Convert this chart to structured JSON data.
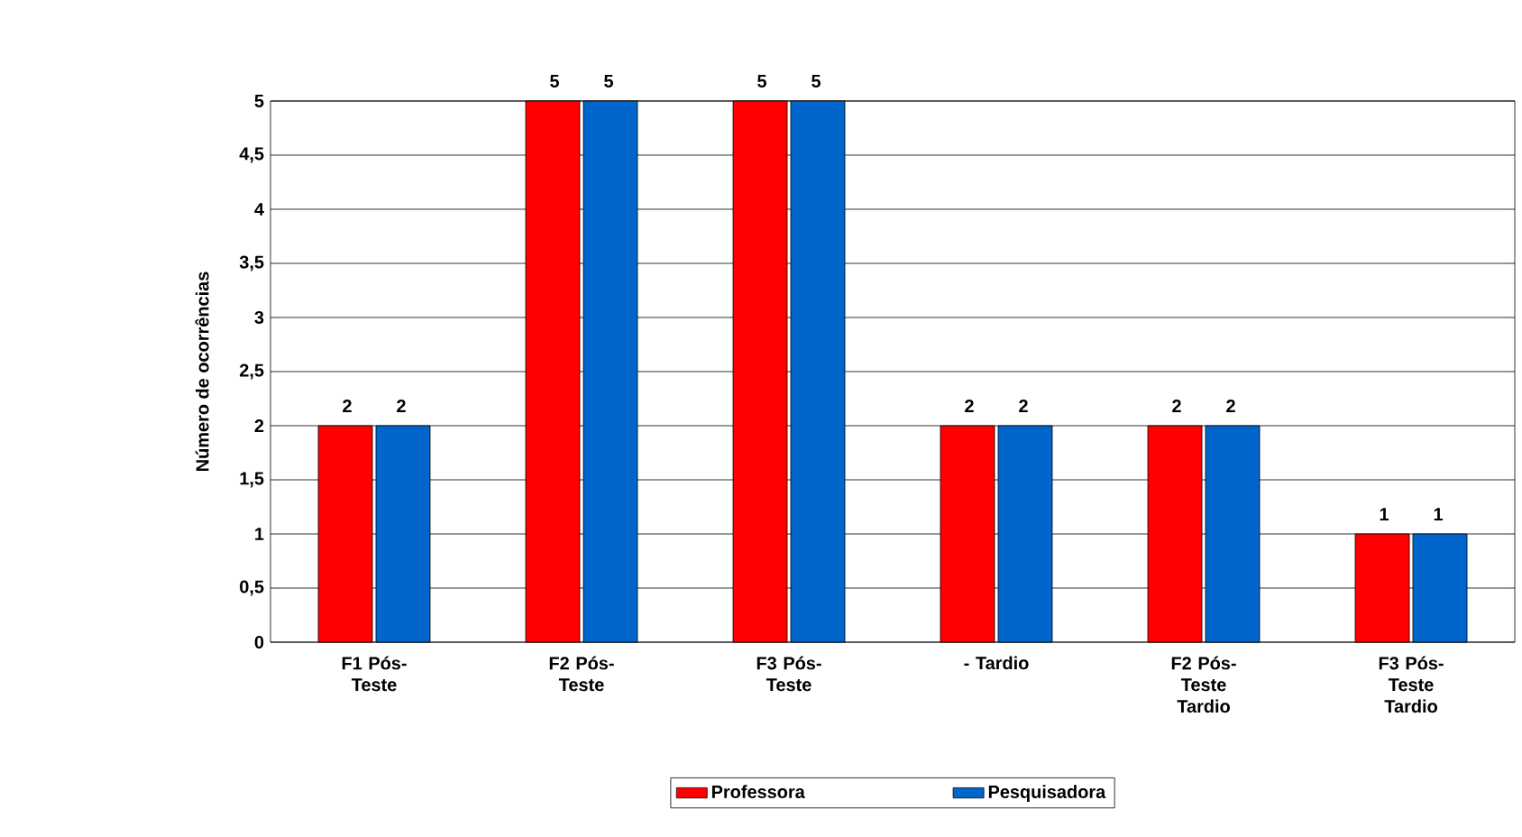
{
  "chart_data": {
    "type": "bar",
    "ylabel": "Número de ocorrências",
    "categories": [
      "F1 Pós-Teste",
      "F2 Pós-Teste",
      "F3 Pós-Teste",
      "- Tardio",
      "F2 Pós-Teste Tardio",
      "F3 Pós-Teste Tardio"
    ],
    "series": [
      {
        "name": "Professora",
        "color": "#ff0000",
        "values": [
          2,
          5,
          5,
          2,
          2,
          1
        ]
      },
      {
        "name": "Pesquisadora",
        "color": "#0066cc",
        "values": [
          2,
          5,
          5,
          2,
          2,
          1
        ]
      }
    ],
    "ylim": [
      0,
      5
    ],
    "yticks": [
      0,
      {
        "value": 0.5,
        "label": "0,5"
      },
      1,
      {
        "value": 1.5,
        "label": "1,5"
      },
      2,
      {
        "value": 2.5,
        "label": "2,5"
      },
      3,
      {
        "value": 3.5,
        "label": "3,5"
      },
      4,
      {
        "value": 4.5,
        "label": "4,5"
      },
      5
    ],
    "grid": "y",
    "legend": "bottom",
    "data_labels": true
  }
}
